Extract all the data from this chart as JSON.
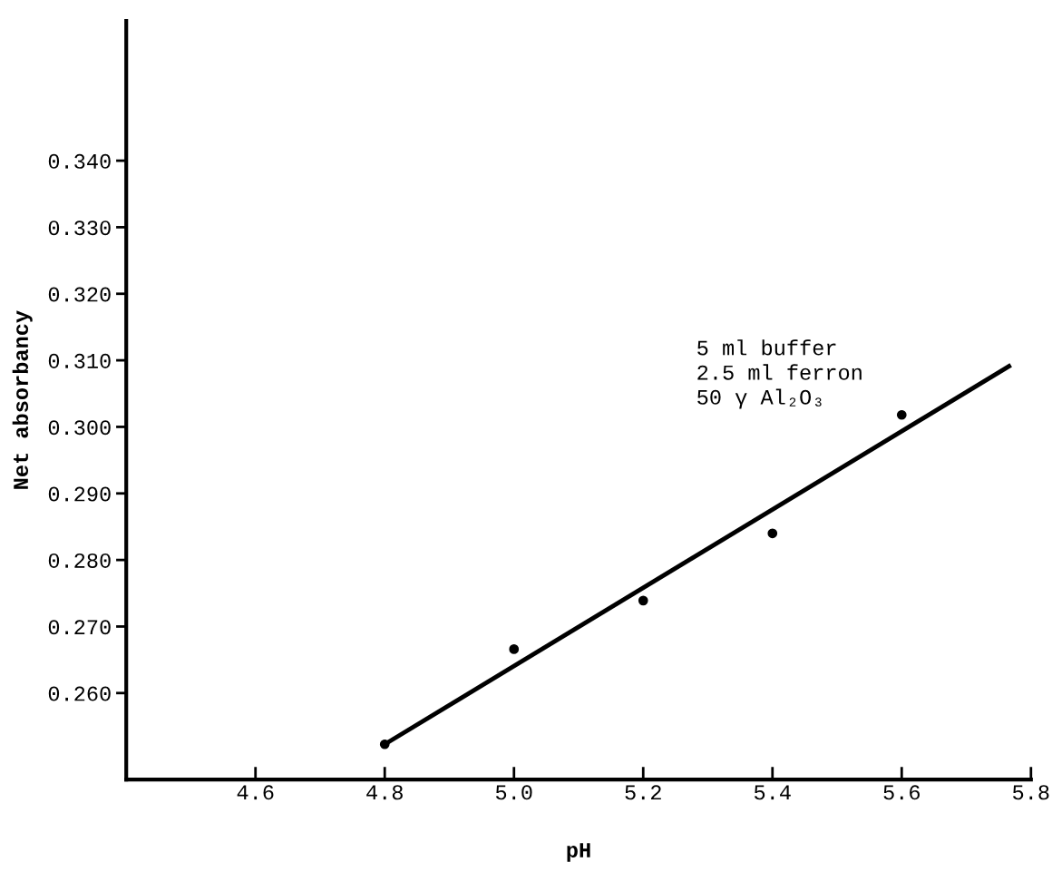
{
  "chart_data": {
    "type": "scatter",
    "xlabel": "pH",
    "ylabel": "Net absorbancy",
    "x": [
      4.8,
      5.0,
      5.2,
      5.4,
      5.6
    ],
    "series": [
      {
        "color": "#000000",
        "marker": "circle",
        "values": [
          0.2523,
          0.2666,
          0.2739,
          0.284,
          0.3018
        ]
      },
      {
        "type": "line",
        "color": "#000000",
        "marker": "none",
        "line_style": "solid",
        "x": [
          4.8,
          5.766
        ],
        "values": [
          0.2523,
          0.3091
        ]
      }
    ],
    "xlim": [
      4.4,
      5.8
    ],
    "xticks": [
      4.6,
      4.8,
      {
        "value": 5.0,
        "label": "5.0"
      },
      5.2,
      5.4,
      5.6,
      5.8
    ],
    "ylim": [
      0.247,
      0.361
    ],
    "yticks": [
      {
        "value": 0.26,
        "label": "0.260"
      },
      {
        "value": 0.27,
        "label": "0.270"
      },
      {
        "value": 0.28,
        "label": "0.280"
      },
      {
        "value": 0.29,
        "label": "0.290"
      },
      {
        "value": 0.3,
        "label": "0.300"
      },
      {
        "value": 0.31,
        "label": "0.310"
      },
      {
        "value": 0.32,
        "label": "0.320"
      },
      {
        "value": 0.33,
        "label": "0.330"
      },
      {
        "value": 0.34,
        "label": "0.340"
      }
    ],
    "annotations": [
      "5 ml buffer\n2.5 ml ferron\n50 γ Al₂O₃"
    ],
    "grid": false,
    "legend": false
  }
}
